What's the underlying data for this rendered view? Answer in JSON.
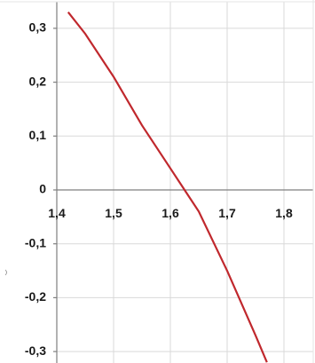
{
  "chart_data": {
    "type": "line",
    "title": "",
    "xlabel": "",
    "ylabel": "",
    "xlim": [
      1.4,
      1.86
    ],
    "ylim": [
      -0.32,
      0.33
    ],
    "x_ticks": [
      1.4,
      1.5,
      1.6,
      1.7,
      1.8
    ],
    "x_tick_labels": [
      "1,4",
      "1,5",
      "1,6",
      "1,7",
      "1,8"
    ],
    "y_ticks": [
      0.3,
      0.2,
      0.1,
      0,
      -0.1,
      -0.2,
      -0.3
    ],
    "y_tick_labels": [
      "0,3",
      "0,2",
      "0,1",
      "0",
      "-0,1",
      "-0,2",
      "-0,3"
    ],
    "grid": true,
    "legend": "none",
    "series": [
      {
        "color": "#c0282d",
        "x": [
          1.42,
          1.45,
          1.5,
          1.55,
          1.6,
          1.625,
          1.65,
          1.7,
          1.75,
          1.77
        ],
        "y": [
          0.33,
          0.29,
          0.21,
          0.12,
          0.04,
          0.0,
          -0.04,
          -0.15,
          -0.27,
          -0.32
        ]
      }
    ]
  }
}
